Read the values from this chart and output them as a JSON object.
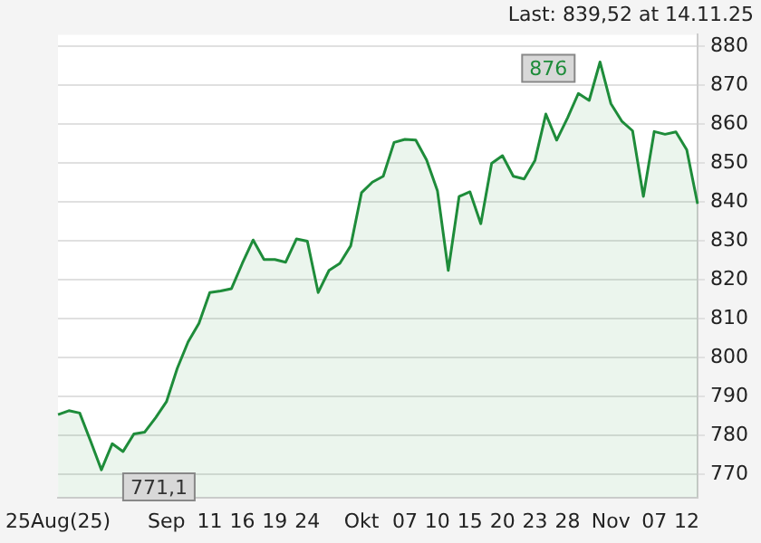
{
  "chart_data": {
    "type": "area",
    "title": "Last: 839,52 at 14.11.25",
    "categories": [
      "25Aug(25)",
      null,
      null,
      null,
      null,
      null,
      null,
      null,
      null,
      null,
      "Sep",
      null,
      null,
      null,
      "11",
      null,
      null,
      "16",
      null,
      null,
      "19",
      null,
      null,
      "24",
      null,
      null,
      null,
      null,
      "Okt",
      null,
      null,
      null,
      "07",
      null,
      null,
      "10",
      null,
      null,
      "15",
      null,
      null,
      "20",
      null,
      null,
      "23",
      null,
      null,
      "28",
      null,
      null,
      null,
      "Nov",
      null,
      null,
      null,
      "07",
      null,
      null,
      "12",
      null
    ],
    "series": [
      {
        "color": "#1e8c3a",
        "values": [
          785.3,
          786.3,
          785.7,
          778.5,
          771.1,
          777.8,
          775.8,
          780.3,
          780.8,
          784.5,
          788.6,
          797.2,
          804.0,
          808.8,
          816.7,
          817.1,
          817.7,
          824.2,
          830.2,
          825.2,
          825.2,
          824.5,
          830.5,
          829.9,
          816.7,
          822.4,
          824.2,
          828.7,
          842.4,
          845.1,
          846.6,
          855.3,
          856.1,
          855.9,
          850.8,
          842.9,
          822.4,
          841.4,
          842.6,
          834.4,
          849.9,
          851.9,
          846.6,
          845.9,
          850.7,
          862.6,
          855.9,
          861.6,
          867.9,
          866.1,
          876,
          865.3,
          860.8,
          858.3,
          841.4,
          858.1,
          857.4,
          858.0,
          853.4,
          839.5
        ]
      }
    ],
    "ylim": [
      764,
      883
    ],
    "yticks": [
      770,
      780,
      790,
      800,
      810,
      820,
      830,
      840,
      850,
      860,
      870,
      880
    ],
    "grid": "y",
    "legend": false,
    "marker": "none",
    "line_style": "solid",
    "annotations": [
      "876",
      "771,1"
    ]
  }
}
